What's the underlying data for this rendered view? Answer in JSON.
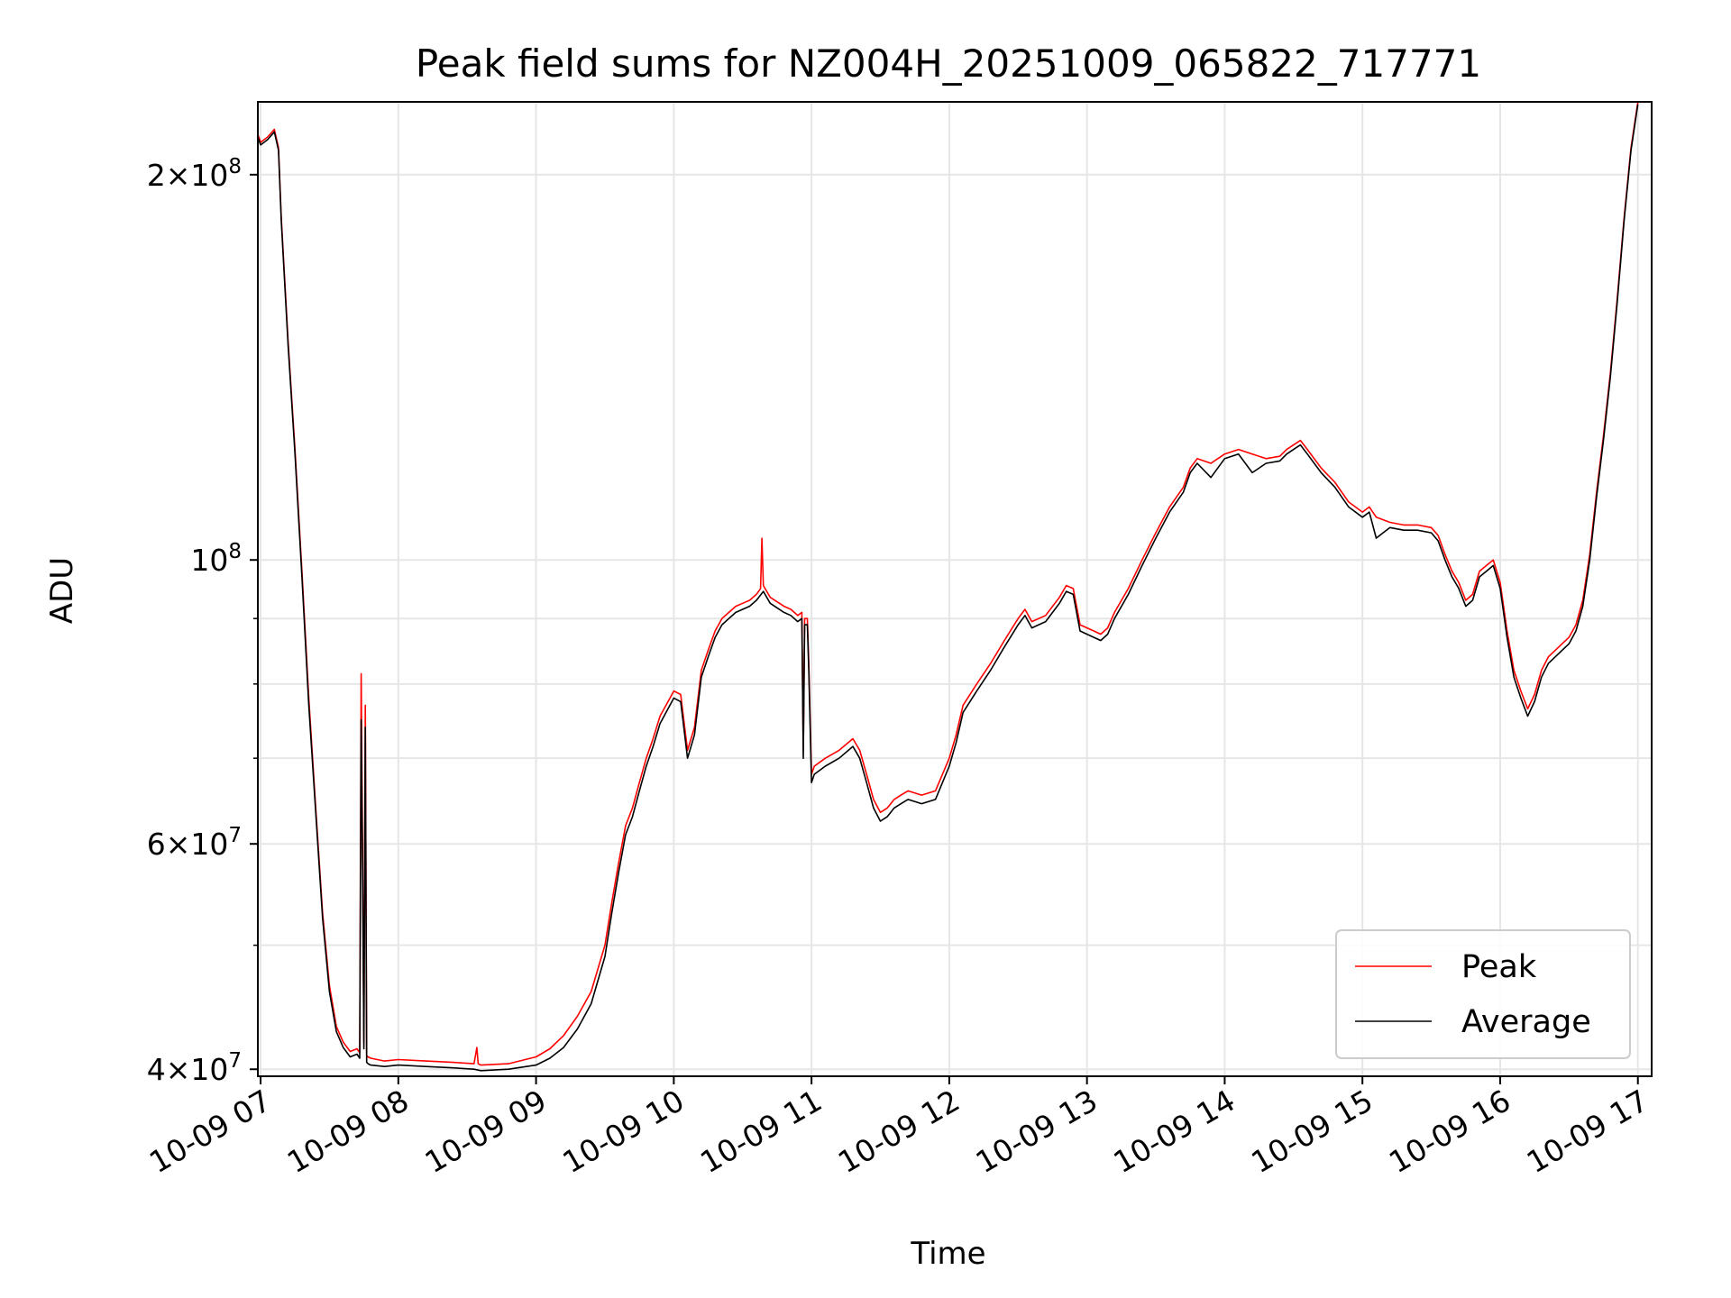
{
  "chart_data": {
    "type": "line",
    "title": "Peak field sums for NZ004H_20251009_065822_717771",
    "xlabel": "Time",
    "ylabel": "ADU",
    "xlim_hours": [
      6.98,
      17.1
    ],
    "ylim": [
      39500000,
      228000000
    ],
    "yscale": "log",
    "grid": true,
    "legend_position": "lower-right",
    "colors": {
      "peak": "#ff0000",
      "average": "#000000",
      "grid": "#e6e6e6",
      "axis": "#000000"
    },
    "x_ticks": [
      {
        "value": 7,
        "label": "10-09 07"
      },
      {
        "value": 8,
        "label": "10-09 08"
      },
      {
        "value": 9,
        "label": "10-09 09"
      },
      {
        "value": 10,
        "label": "10-09 10"
      },
      {
        "value": 11,
        "label": "10-09 11"
      },
      {
        "value": 12,
        "label": "10-09 12"
      },
      {
        "value": 13,
        "label": "10-09 13"
      },
      {
        "value": 14,
        "label": "10-09 14"
      },
      {
        "value": 15,
        "label": "10-09 15"
      },
      {
        "value": 16,
        "label": "10-09 16"
      },
      {
        "value": 17,
        "label": "10-09 17"
      }
    ],
    "y_major_ticks": [
      {
        "value": 40000000,
        "mantissa": "4",
        "exp": "7"
      },
      {
        "value": 60000000,
        "mantissa": "6",
        "exp": "7"
      },
      {
        "value": 100000000,
        "mantissa": "",
        "exp": "8"
      },
      {
        "value": 200000000,
        "mantissa": "2",
        "exp": "8"
      }
    ],
    "y_minor_ticks": [
      50000000,
      70000000,
      80000000,
      90000000
    ],
    "series": [
      {
        "name": "Peak",
        "x": [
          6.98,
          7.0,
          7.05,
          7.1,
          7.13,
          7.15,
          7.2,
          7.25,
          7.3,
          7.35,
          7.4,
          7.45,
          7.5,
          7.55,
          7.6,
          7.65,
          7.7,
          7.72,
          7.73,
          7.74,
          7.75,
          7.76,
          7.77,
          7.78,
          7.8,
          7.9,
          8.0,
          8.2,
          8.4,
          8.55,
          8.57,
          8.58,
          8.6,
          8.8,
          9.0,
          9.1,
          9.2,
          9.3,
          9.4,
          9.5,
          9.55,
          9.6,
          9.65,
          9.7,
          9.75,
          9.8,
          9.85,
          9.9,
          10.0,
          10.05,
          10.1,
          10.15,
          10.2,
          10.25,
          10.3,
          10.35,
          10.4,
          10.45,
          10.5,
          10.55,
          10.6,
          10.63,
          10.64,
          10.65,
          10.7,
          10.8,
          10.85,
          10.9,
          10.93,
          10.94,
          10.95,
          10.97,
          10.98,
          11.0,
          11.02,
          11.1,
          11.2,
          11.3,
          11.35,
          11.4,
          11.45,
          11.5,
          11.55,
          11.6,
          11.65,
          11.7,
          11.8,
          11.9,
          12.0,
          12.05,
          12.1,
          12.2,
          12.3,
          12.4,
          12.5,
          12.55,
          12.6,
          12.7,
          12.75,
          12.8,
          12.85,
          12.9,
          12.95,
          13.0,
          13.05,
          13.1,
          13.15,
          13.2,
          13.3,
          13.4,
          13.5,
          13.6,
          13.7,
          13.75,
          13.8,
          13.9,
          14.0,
          14.1,
          14.2,
          14.3,
          14.4,
          14.45,
          14.5,
          14.55,
          14.6,
          14.7,
          14.8,
          14.9,
          15.0,
          15.05,
          15.1,
          15.2,
          15.3,
          15.4,
          15.5,
          15.55,
          15.6,
          15.65,
          15.7,
          15.75,
          15.8,
          15.85,
          15.9,
          15.95,
          16.0,
          16.05,
          16.1,
          16.15,
          16.2,
          16.25,
          16.3,
          16.35,
          16.4,
          16.45,
          16.5,
          16.55,
          16.6,
          16.65,
          16.7,
          16.75,
          16.8,
          16.85,
          16.9,
          16.95,
          17.0
        ],
        "values": [
          215000000,
          212000000,
          214000000,
          217000000,
          210000000,
          185000000,
          148000000,
          122000000,
          98000000,
          78000000,
          64000000,
          53000000,
          46500000,
          43200000,
          42000000,
          41300000,
          41500000,
          41200000,
          81500000,
          60000000,
          42000000,
          77000000,
          41000000,
          40900000,
          40800000,
          40600000,
          40700000,
          40600000,
          40500000,
          40400000,
          41600000,
          40400000,
          40300000,
          40400000,
          40900000,
          41500000,
          42500000,
          44000000,
          46000000,
          50000000,
          54000000,
          58000000,
          62000000,
          64000000,
          67000000,
          70000000,
          72500000,
          75500000,
          79000000,
          78500000,
          71000000,
          74000000,
          82000000,
          85000000,
          88000000,
          90000000,
          91000000,
          92000000,
          92500000,
          93000000,
          94000000,
          95000000,
          104000000,
          95500000,
          93500000,
          92000000,
          91500000,
          90500000,
          91000000,
          71000000,
          90000000,
          90000000,
          83000000,
          68000000,
          69000000,
          70000000,
          71000000,
          72500000,
          71000000,
          68000000,
          65000000,
          63500000,
          64000000,
          65000000,
          65500000,
          66000000,
          65500000,
          66000000,
          70000000,
          73000000,
          77000000,
          80000000,
          83000000,
          86500000,
          90000000,
          91500000,
          89500000,
          90500000,
          92000000,
          93500000,
          95500000,
          95000000,
          89000000,
          88500000,
          88000000,
          87500000,
          88500000,
          91000000,
          95000000,
          100000000,
          105000000,
          110000000,
          114000000,
          118000000,
          120000000,
          119000000,
          121000000,
          122000000,
          121000000,
          120000000,
          120500000,
          122000000,
          123000000,
          124000000,
          122000000,
          118000000,
          115000000,
          111000000,
          109000000,
          110000000,
          108000000,
          107000000,
          106500000,
          106500000,
          106000000,
          104500000,
          101000000,
          98000000,
          96000000,
          93000000,
          94000000,
          98000000,
          99000000,
          100000000,
          96000000,
          88000000,
          82000000,
          79000000,
          76500000,
          78500000,
          82000000,
          84000000,
          85000000,
          86000000,
          87000000,
          89000000,
          93000000,
          101000000,
          113000000,
          125000000,
          140000000,
          160000000,
          185000000,
          210000000,
          228000000
        ]
      },
      {
        "name": "Average",
        "x": [
          6.98,
          7.0,
          7.05,
          7.1,
          7.13,
          7.15,
          7.2,
          7.25,
          7.3,
          7.35,
          7.4,
          7.45,
          7.5,
          7.55,
          7.6,
          7.65,
          7.7,
          7.72,
          7.73,
          7.74,
          7.75,
          7.76,
          7.77,
          7.78,
          7.8,
          7.9,
          8.0,
          8.2,
          8.4,
          8.55,
          8.6,
          8.8,
          9.0,
          9.1,
          9.2,
          9.3,
          9.4,
          9.5,
          9.55,
          9.6,
          9.65,
          9.7,
          9.75,
          9.8,
          9.85,
          9.9,
          10.0,
          10.05,
          10.1,
          10.15,
          10.2,
          10.25,
          10.3,
          10.35,
          10.4,
          10.45,
          10.5,
          10.55,
          10.6,
          10.65,
          10.7,
          10.8,
          10.85,
          10.9,
          10.93,
          10.94,
          10.95,
          10.97,
          10.98,
          11.0,
          11.02,
          11.1,
          11.2,
          11.3,
          11.35,
          11.4,
          11.45,
          11.5,
          11.55,
          11.6,
          11.65,
          11.7,
          11.8,
          11.9,
          12.0,
          12.05,
          12.1,
          12.2,
          12.3,
          12.4,
          12.5,
          12.55,
          12.6,
          12.7,
          12.75,
          12.8,
          12.85,
          12.9,
          12.95,
          13.0,
          13.05,
          13.1,
          13.15,
          13.2,
          13.3,
          13.4,
          13.5,
          13.6,
          13.7,
          13.75,
          13.8,
          13.9,
          14.0,
          14.1,
          14.2,
          14.3,
          14.4,
          14.45,
          14.5,
          14.55,
          14.6,
          14.7,
          14.8,
          14.9,
          15.0,
          15.05,
          15.1,
          15.2,
          15.3,
          15.4,
          15.5,
          15.55,
          15.6,
          15.65,
          15.7,
          15.75,
          15.8,
          15.85,
          15.9,
          15.95,
          16.0,
          16.05,
          16.1,
          16.15,
          16.2,
          16.25,
          16.3,
          16.35,
          16.4,
          16.45,
          16.5,
          16.55,
          16.6,
          16.65,
          16.7,
          16.75,
          16.8,
          16.85,
          16.9,
          16.95,
          17.0
        ],
        "values": [
          214000000,
          211000000,
          213000000,
          216000000,
          209000000,
          184000000,
          147000000,
          121000000,
          97000000,
          77000000,
          63500000,
          52500000,
          46000000,
          42800000,
          41600000,
          40900000,
          41100000,
          40800000,
          75000000,
          58000000,
          41500000,
          74000000,
          40500000,
          40400000,
          40300000,
          40200000,
          40300000,
          40200000,
          40100000,
          40000000,
          39900000,
          40000000,
          40300000,
          40800000,
          41600000,
          43000000,
          45000000,
          49000000,
          53000000,
          57000000,
          61000000,
          63000000,
          66000000,
          69000000,
          71500000,
          74500000,
          78000000,
          77500000,
          70000000,
          73000000,
          81000000,
          84000000,
          87000000,
          89000000,
          90000000,
          91000000,
          91500000,
          92000000,
          93000000,
          94500000,
          92500000,
          91000000,
          90500000,
          89500000,
          90000000,
          70000000,
          89000000,
          89000000,
          82000000,
          67000000,
          68000000,
          69000000,
          70000000,
          71500000,
          70000000,
          67000000,
          64000000,
          62500000,
          63000000,
          64000000,
          64500000,
          65000000,
          64500000,
          65000000,
          69000000,
          72000000,
          76000000,
          79000000,
          82000000,
          85500000,
          89000000,
          90500000,
          88500000,
          89500000,
          91000000,
          92500000,
          94500000,
          94000000,
          88000000,
          87500000,
          87000000,
          86500000,
          87500000,
          90000000,
          94000000,
          99000000,
          104000000,
          109000000,
          113000000,
          117000000,
          119000000,
          116000000,
          120000000,
          121000000,
          117000000,
          119000000,
          119500000,
          121000000,
          122000000,
          123000000,
          121000000,
          117000000,
          114000000,
          110000000,
          108000000,
          109000000,
          104000000,
          106000000,
          105500000,
          105500000,
          105000000,
          103500000,
          100000000,
          97000000,
          95000000,
          92000000,
          93000000,
          97000000,
          98000000,
          99000000,
          95000000,
          87000000,
          81000000,
          78000000,
          75500000,
          77500000,
          81000000,
          83000000,
          84000000,
          85000000,
          86000000,
          88000000,
          92000000,
          100000000,
          112000000,
          124000000,
          139000000,
          159000000,
          184000000,
          209000000,
          227000000
        ]
      }
    ]
  }
}
